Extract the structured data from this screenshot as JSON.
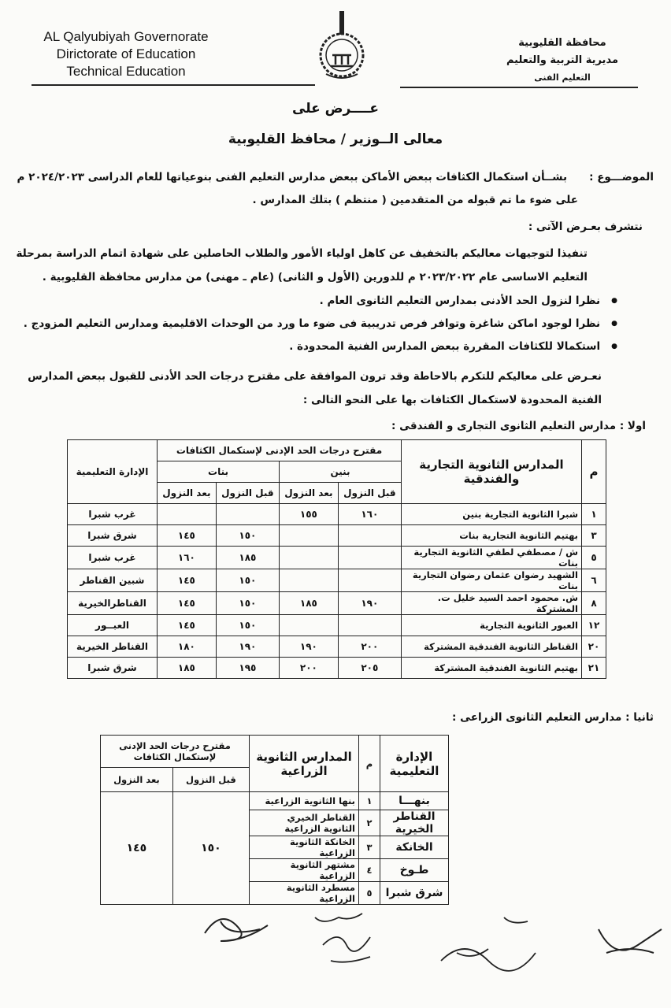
{
  "header": {
    "english_lines": [
      "AL Qalyubiyah Governorate",
      "Dirictorate of  Education",
      "Technical Education"
    ],
    "arabic_lines": [
      "محافظة القليوبية",
      "مديرية التربية والتعليم",
      "التعليم الفنى"
    ]
  },
  "addressee": {
    "line1": "عــــرض على",
    "line2": "معالى الــوزير / محافظ القليوبية"
  },
  "subject": {
    "label": "الموضـــوع :",
    "line1": "بشــأن  استكمال الكثافات  ببعض الأماكن ببعض مدارس التعليم الفنى  بنوعياتها للعام الدراسى ٢٠٢٤/٢٠٢٣ م",
    "line2": "على ضوء ما تم قبوله من المتقدمين ( منتظم )  بتلك المدارس ."
  },
  "body": {
    "intro": "نتشرف بعـرض الآتى :",
    "para1": "تنفيذا لتوجيهات معاليكم بالتخفيف عن كاهل اولياء الأمور والطلاب الحاصلين على شهادة اتمام الدراسة بمرحلة التعليم الاساسى  عام ٢٠٢٣/٢٠٢٢ م  للدورين  (الأول و الثانى) (عام ـ مهنى) من مدارس محافظة القليوبية .",
    "bullets": [
      "نظرا لنزول الحد الأدنى بمدارس التعليم الثانوى العام .",
      "نظرا لوجود اماكن شاغرة وتوافر فرص تدريبية فى ضوء ما ورد من الوحدات الاقليمية  ومدارس التعليم المزودج .",
      "استكمالا للكثافات  المقررة ببعض المدارس الفنية المحدودة ."
    ],
    "para2": "نعـرض على معاليكم للتكرم بالاحاطة  وقد ترون الموافقة على مقترح  درجات الحد الأدنى للقبول ببعض المدارس الفنية المحدودة لاستكمال الكثافات بها  على النحو التالى :"
  },
  "section1": {
    "title": "اولا :  مدارس التعليم الثانوى التجارى و الفندقى :",
    "headers": {
      "num": "م",
      "school": "المدارس الثانوية التجارية والفندقية",
      "proposal": "مقترح درجات الحد الإدنى لإستكمال الكثافات",
      "boys": "بنين",
      "girls": "بنات",
      "before": "قبل النزول",
      "after": "بعد النزول",
      "idara": "الإدارة التعليمية"
    },
    "rows": [
      {
        "num": "١",
        "school": "شبرا الثانوية التجارية بنين",
        "boys_before": "١٦٠",
        "boys_after": "١٥٥",
        "girls_before": "",
        "girls_after": "",
        "idara": "غرب شبرا"
      },
      {
        "num": "٣",
        "school": "بهتيم  الثانوية التجارية بنات",
        "boys_before": "",
        "boys_after": "",
        "girls_before": "١٥٠",
        "girls_after": "١٤٥",
        "idara": "شرق شبرا"
      },
      {
        "num": "٥",
        "school": "ش / مصطفي لطفي الثانوية التجارية بنات",
        "boys_before": "",
        "boys_after": "",
        "girls_before": "١٨٥",
        "girls_after": "١٦٠",
        "idara": "غرب شبرا"
      },
      {
        "num": "٦",
        "school": "الشهيد رضوان عثمان رضوان التجارية بنات",
        "boys_before": "",
        "boys_after": "",
        "girls_before": "١٥٠",
        "girls_after": "١٤٥",
        "idara": "شبين القناطر"
      },
      {
        "num": "٨",
        "school": "ش.  محمود احمد السيد خليل ت.  المشتركة",
        "boys_before": "١٩٠",
        "boys_after": "١٨٥",
        "girls_before": "١٥٠",
        "girls_after": "١٤٥",
        "idara": "القناطرالخيرية"
      },
      {
        "num": "١٢",
        "school": "العبور الثانوية التجارية",
        "boys_before": "",
        "boys_after": "",
        "girls_before": "١٥٠",
        "girls_after": "١٤٥",
        "idara": "العبــور"
      },
      {
        "num": "٢٠",
        "school": "القناطر الثانوية الفندقية المشتركة",
        "boys_before": "٢٠٠",
        "boys_after": "١٩٠",
        "girls_before": "١٩٠",
        "girls_after": "١٨٠",
        "idara": "القناطر الخيرية"
      },
      {
        "num": "٢١",
        "school": "بهتيم الثانوية الفندقية المشتركة",
        "boys_before": "٢٠٥",
        "boys_after": "٢٠٠",
        "girls_before": "١٩٥",
        "girls_after": "١٨٥",
        "idara": "شرق شبرا"
      }
    ]
  },
  "section2": {
    "title": "ثانيا :  مدارس التعليم الثانوى الزراعى :",
    "headers": {
      "idara": "الإدارة التعليمية",
      "num": "م",
      "school": "المدارس الثانوية الزراعية",
      "proposal": "مقترح درجات الحد الإدنى لإستكمال الكثافات",
      "before": "قبل النزول",
      "after": "بعد النزول"
    },
    "before_value": "١٥٠",
    "after_value": "١٤٥",
    "rows": [
      {
        "idara": "بنهـــا",
        "num": "١",
        "school": "بنها الثانوية الزراعية"
      },
      {
        "idara": "القناطر الخيرية",
        "num": "٢",
        "school": "القناطر الخيري الثانوية الزراعية"
      },
      {
        "idara": "الخانكة",
        "num": "٣",
        "school": "الخانكة الثانوية الزراعية"
      },
      {
        "idara": "طـوخ",
        "num": "٤",
        "school": "مشتهر الثانوية الزراعية"
      },
      {
        "idara": "شرق شبرا",
        "num": "٥",
        "school": "مسطرد الثانوية الزراعية"
      }
    ]
  }
}
